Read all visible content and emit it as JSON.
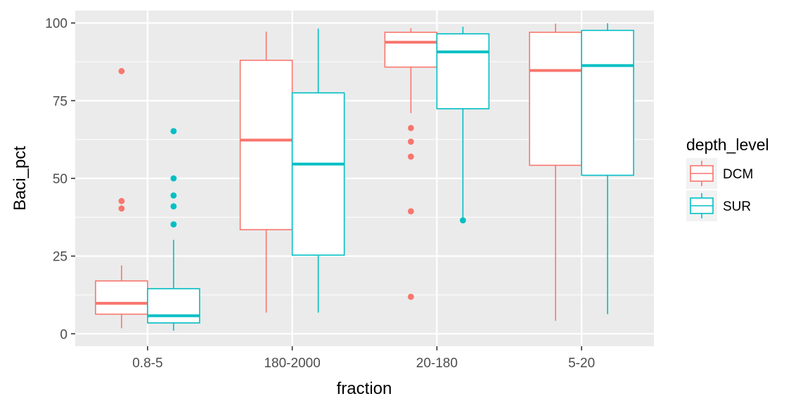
{
  "chart_data": {
    "type": "boxplot",
    "xlabel": "fraction",
    "ylabel": "Baci_pct",
    "categories": [
      "0.8-5",
      "180-2000",
      "20-180",
      "5-20"
    ],
    "ylim": [
      -4,
      104
    ],
    "yticks": [
      0,
      25,
      50,
      75,
      100
    ],
    "grid": true,
    "legend": {
      "title": "depth_level",
      "placement": "right"
    },
    "series": [
      {
        "name": "DCM",
        "color": "#F8766D",
        "boxes": [
          {
            "category": "0.8-5",
            "whisker_low": 1.8,
            "q1": 6.3,
            "median": 9.8,
            "q3": 17.0,
            "whisker_high": 22.0,
            "outliers": [
              84.5,
              42.7,
              40.3
            ]
          },
          {
            "category": "180-2000",
            "whisker_low": 6.8,
            "q1": 33.5,
            "median": 62.3,
            "q3": 88.0,
            "whisker_high": 97.2,
            "outliers": []
          },
          {
            "category": "20-180",
            "whisker_low": 71.0,
            "q1": 85.8,
            "median": 93.8,
            "q3": 97.0,
            "whisker_high": 98.3,
            "outliers": [
              66.2,
              61.8,
              57.0,
              39.4,
              11.9
            ]
          },
          {
            "category": "5-20",
            "whisker_low": 4.2,
            "q1": 54.2,
            "median": 84.7,
            "q3": 97.0,
            "whisker_high": 99.8,
            "outliers": []
          }
        ]
      },
      {
        "name": "SUR",
        "color": "#00BFC4",
        "boxes": [
          {
            "category": "0.8-5",
            "whisker_low": 1.0,
            "q1": 3.5,
            "median": 5.8,
            "q3": 14.5,
            "whisker_high": 30.2,
            "outliers": [
              65.2,
              50.0,
              44.5,
              41.0,
              35.2
            ]
          },
          {
            "category": "180-2000",
            "whisker_low": 6.8,
            "q1": 25.3,
            "median": 54.6,
            "q3": 77.5,
            "whisker_high": 98.2,
            "outliers": []
          },
          {
            "category": "20-180",
            "whisker_low": 36.5,
            "q1": 72.4,
            "median": 90.7,
            "q3": 96.5,
            "whisker_high": 98.8,
            "outliers": [
              36.5
            ]
          },
          {
            "category": "5-20",
            "whisker_low": 6.3,
            "q1": 51.0,
            "median": 86.3,
            "q3": 97.6,
            "whisker_high": 99.9,
            "outliers": []
          }
        ]
      }
    ]
  }
}
